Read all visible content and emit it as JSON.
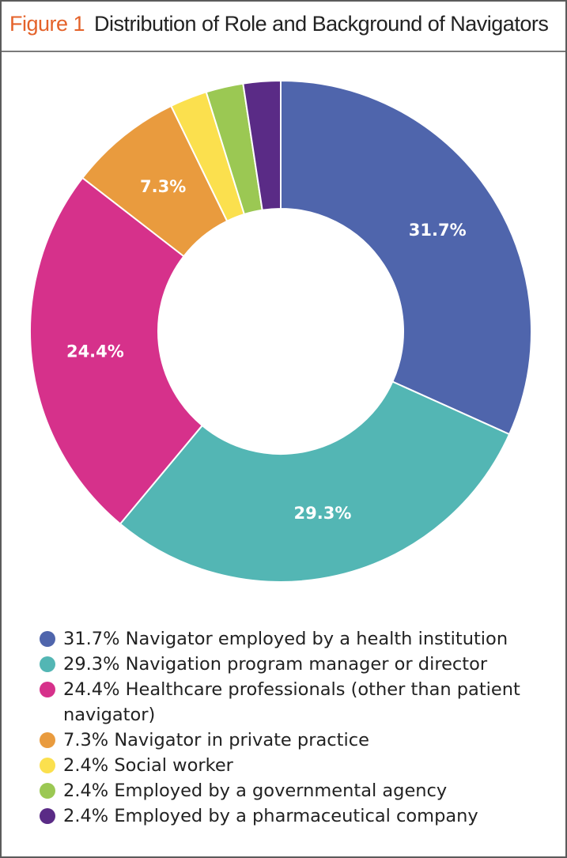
{
  "figure": {
    "label": "Figure 1",
    "title": "Distribution of Role and Background of Navigators"
  },
  "colors": {
    "label": "#e4622a",
    "slices": [
      "#4f65ac",
      "#53b6b4",
      "#d6318b",
      "#e99b3e",
      "#fbe04e",
      "#9bc853",
      "#5a2b86"
    ]
  },
  "chart_data": {
    "type": "pie",
    "variant": "donut",
    "title": "Distribution of Role and Background of Navigators",
    "categories": [
      "Navigator employed by a health institution",
      "Navigation program manager or director",
      "Healthcare professionals (other than patient navigator)",
      "Navigator in private practice",
      "Social worker",
      "Employed by a governmental agency",
      "Employed by a pharmaceutical company"
    ],
    "values": [
      31.7,
      29.3,
      24.4,
      7.3,
      2.4,
      2.4,
      2.4
    ],
    "slice_labels": [
      "31.7%",
      "29.3%",
      "24.4%",
      "7.3%",
      "",
      "",
      ""
    ]
  },
  "legend": {
    "items": [
      "31.7% Navigator employed by a health institution",
      "29.3% Navigation program manager or director",
      "24.4% Healthcare professionals (other than patient navigator)",
      "7.3% Navigator in private practice",
      "2.4% Social worker",
      "2.4% Employed by a governmental agency",
      "2.4% Employed by a pharmaceutical company"
    ]
  }
}
